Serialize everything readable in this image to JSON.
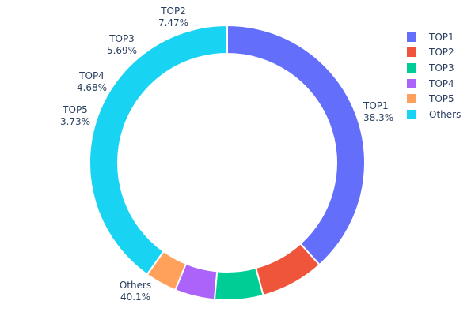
{
  "chart_data": {
    "type": "pie",
    "hole": true,
    "categories": [
      "TOP1",
      "TOP2",
      "TOP3",
      "TOP4",
      "TOP5",
      "Others"
    ],
    "values": [
      38.3,
      7.47,
      5.69,
      4.68,
      3.73,
      40.1
    ],
    "value_labels": [
      "38.3%",
      "7.47%",
      "5.69%",
      "4.68%",
      "3.73%",
      "40.1%"
    ],
    "colors": [
      "#636efa",
      "#EF553B",
      "#00cc96",
      "#ab63fa",
      "#FFA15A",
      "#19d3f3"
    ],
    "legend_position": "top-right",
    "title": ""
  }
}
